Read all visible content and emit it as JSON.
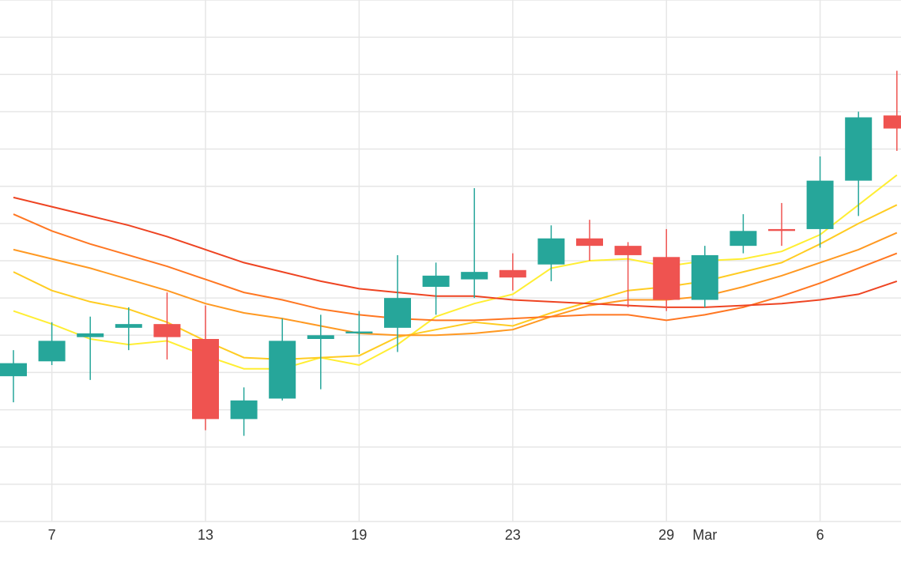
{
  "chart_data": {
    "type": "candlestick",
    "x_ticks": [
      {
        "index": 1,
        "label": "7"
      },
      {
        "index": 5,
        "label": "13"
      },
      {
        "index": 9,
        "label": "19"
      },
      {
        "index": 13,
        "label": "23"
      },
      {
        "index": 17,
        "label": "29"
      },
      {
        "index": 18,
        "label": "Mar"
      },
      {
        "index": 21,
        "label": "6"
      }
    ],
    "y_range": [
      0,
      14
    ],
    "grid": true,
    "candles": [
      {
        "i": 0,
        "open": 3.9,
        "close": 4.25,
        "low": 3.2,
        "high": 4.6
      },
      {
        "i": 1,
        "open": 4.3,
        "close": 4.85,
        "low": 4.2,
        "high": 5.35
      },
      {
        "i": 2,
        "open": 4.95,
        "close": 5.05,
        "low": 3.8,
        "high": 5.5
      },
      {
        "i": 3,
        "open": 5.2,
        "close": 5.3,
        "low": 4.6,
        "high": 5.75
      },
      {
        "i": 4,
        "open": 5.3,
        "close": 4.95,
        "low": 4.35,
        "high": 6.15
      },
      {
        "i": 5,
        "open": 4.9,
        "close": 2.75,
        "low": 2.45,
        "high": 5.8
      },
      {
        "i": 6,
        "open": 2.75,
        "close": 3.25,
        "low": 2.3,
        "high": 3.6
      },
      {
        "i": 7,
        "open": 3.3,
        "close": 4.85,
        "low": 3.25,
        "high": 5.45
      },
      {
        "i": 8,
        "open": 4.9,
        "close": 5.0,
        "low": 3.55,
        "high": 5.55
      },
      {
        "i": 9,
        "open": 5.05,
        "close": 5.1,
        "low": 4.5,
        "high": 5.65
      },
      {
        "i": 10,
        "open": 5.2,
        "close": 6.0,
        "low": 4.55,
        "high": 7.15
      },
      {
        "i": 11,
        "open": 6.3,
        "close": 6.6,
        "low": 5.55,
        "high": 6.95
      },
      {
        "i": 12,
        "open": 6.5,
        "close": 6.7,
        "low": 6.0,
        "high": 8.95
      },
      {
        "i": 13,
        "open": 6.75,
        "close": 6.55,
        "low": 6.2,
        "high": 7.2
      },
      {
        "i": 14,
        "open": 6.9,
        "close": 7.6,
        "low": 6.45,
        "high": 7.95
      },
      {
        "i": 15,
        "open": 7.6,
        "close": 7.4,
        "low": 7.0,
        "high": 8.1
      },
      {
        "i": 16,
        "open": 7.4,
        "close": 7.15,
        "low": 5.75,
        "high": 7.5
      },
      {
        "i": 17,
        "open": 7.1,
        "close": 5.95,
        "low": 5.65,
        "high": 7.85
      },
      {
        "i": 18,
        "open": 5.95,
        "close": 7.15,
        "low": 5.75,
        "high": 7.4
      },
      {
        "i": 19,
        "open": 7.4,
        "close": 7.8,
        "low": 7.2,
        "high": 8.25
      },
      {
        "i": 20,
        "open": 7.85,
        "close": 7.8,
        "low": 7.4,
        "high": 8.55
      },
      {
        "i": 21,
        "open": 7.85,
        "close": 9.15,
        "low": 7.35,
        "high": 9.8
      },
      {
        "i": 22,
        "open": 9.15,
        "close": 10.85,
        "low": 8.2,
        "high": 11.0
      },
      {
        "i": 23,
        "open": 10.9,
        "close": 10.55,
        "low": 9.95,
        "high": 12.1
      }
    ],
    "moving_averages": [
      {
        "color": "#ffee33",
        "values": [
          [
            0,
            5.65
          ],
          [
            1,
            5.3
          ],
          [
            2,
            4.9
          ],
          [
            3,
            4.75
          ],
          [
            4,
            4.85
          ],
          [
            5,
            4.45
          ],
          [
            6,
            4.1
          ],
          [
            7,
            4.1
          ],
          [
            8,
            4.4
          ],
          [
            9,
            4.2
          ],
          [
            10,
            4.75
          ],
          [
            11,
            5.5
          ],
          [
            12,
            5.85
          ],
          [
            13,
            6.1
          ],
          [
            14,
            6.8
          ],
          [
            15,
            7.0
          ],
          [
            16,
            7.05
          ],
          [
            17,
            6.85
          ],
          [
            18,
            7.0
          ],
          [
            19,
            7.05
          ],
          [
            20,
            7.25
          ],
          [
            21,
            7.7
          ],
          [
            22,
            8.5
          ],
          [
            23,
            9.3
          ]
        ]
      },
      {
        "color": "#ffcc22",
        "values": [
          [
            0,
            6.7
          ],
          [
            1,
            6.2
          ],
          [
            2,
            5.9
          ],
          [
            3,
            5.7
          ],
          [
            4,
            5.35
          ],
          [
            5,
            4.85
          ],
          [
            6,
            4.4
          ],
          [
            7,
            4.35
          ],
          [
            8,
            4.4
          ],
          [
            9,
            4.45
          ],
          [
            10,
            4.95
          ],
          [
            11,
            5.15
          ],
          [
            12,
            5.35
          ],
          [
            13,
            5.25
          ],
          [
            14,
            5.6
          ],
          [
            15,
            5.9
          ],
          [
            16,
            6.2
          ],
          [
            17,
            6.3
          ],
          [
            18,
            6.45
          ],
          [
            19,
            6.7
          ],
          [
            20,
            6.95
          ],
          [
            21,
            7.45
          ],
          [
            22,
            8.0
          ],
          [
            23,
            8.5
          ]
        ]
      },
      {
        "color": "#ff9922",
        "values": [
          [
            0,
            7.3
          ],
          [
            1,
            7.05
          ],
          [
            2,
            6.8
          ],
          [
            3,
            6.5
          ],
          [
            4,
            6.2
          ],
          [
            5,
            5.85
          ],
          [
            6,
            5.6
          ],
          [
            7,
            5.45
          ],
          [
            8,
            5.25
          ],
          [
            9,
            5.05
          ],
          [
            10,
            5.0
          ],
          [
            11,
            5.0
          ],
          [
            12,
            5.05
          ],
          [
            13,
            5.15
          ],
          [
            14,
            5.5
          ],
          [
            15,
            5.8
          ],
          [
            16,
            5.95
          ],
          [
            17,
            5.95
          ],
          [
            18,
            6.05
          ],
          [
            19,
            6.3
          ],
          [
            20,
            6.6
          ],
          [
            21,
            6.95
          ],
          [
            22,
            7.3
          ],
          [
            23,
            7.75
          ]
        ]
      },
      {
        "color": "#ff7722",
        "values": [
          [
            0,
            8.25
          ],
          [
            1,
            7.8
          ],
          [
            2,
            7.45
          ],
          [
            3,
            7.15
          ],
          [
            4,
            6.85
          ],
          [
            5,
            6.5
          ],
          [
            6,
            6.15
          ],
          [
            7,
            5.95
          ],
          [
            8,
            5.7
          ],
          [
            9,
            5.55
          ],
          [
            10,
            5.45
          ],
          [
            11,
            5.4
          ],
          [
            12,
            5.4
          ],
          [
            13,
            5.45
          ],
          [
            14,
            5.5
          ],
          [
            15,
            5.55
          ],
          [
            16,
            5.55
          ],
          [
            17,
            5.4
          ],
          [
            18,
            5.55
          ],
          [
            19,
            5.75
          ],
          [
            20,
            6.05
          ],
          [
            21,
            6.4
          ],
          [
            22,
            6.8
          ],
          [
            23,
            7.2
          ]
        ]
      },
      {
        "color": "#ee4422",
        "values": [
          [
            0,
            8.7
          ],
          [
            1,
            8.45
          ],
          [
            2,
            8.2
          ],
          [
            3,
            7.95
          ],
          [
            4,
            7.65
          ],
          [
            5,
            7.3
          ],
          [
            6,
            6.95
          ],
          [
            7,
            6.7
          ],
          [
            8,
            6.45
          ],
          [
            9,
            6.25
          ],
          [
            10,
            6.15
          ],
          [
            11,
            6.05
          ],
          [
            12,
            6.05
          ],
          [
            13,
            5.95
          ],
          [
            14,
            5.9
          ],
          [
            15,
            5.85
          ],
          [
            16,
            5.8
          ],
          [
            17,
            5.75
          ],
          [
            18,
            5.75
          ],
          [
            19,
            5.8
          ],
          [
            20,
            5.85
          ],
          [
            21,
            5.95
          ],
          [
            22,
            6.1
          ],
          [
            23,
            6.45
          ]
        ]
      }
    ],
    "colors": {
      "up": "#26a69a",
      "down": "#ef5350",
      "grid": "#e6e6e6"
    }
  }
}
